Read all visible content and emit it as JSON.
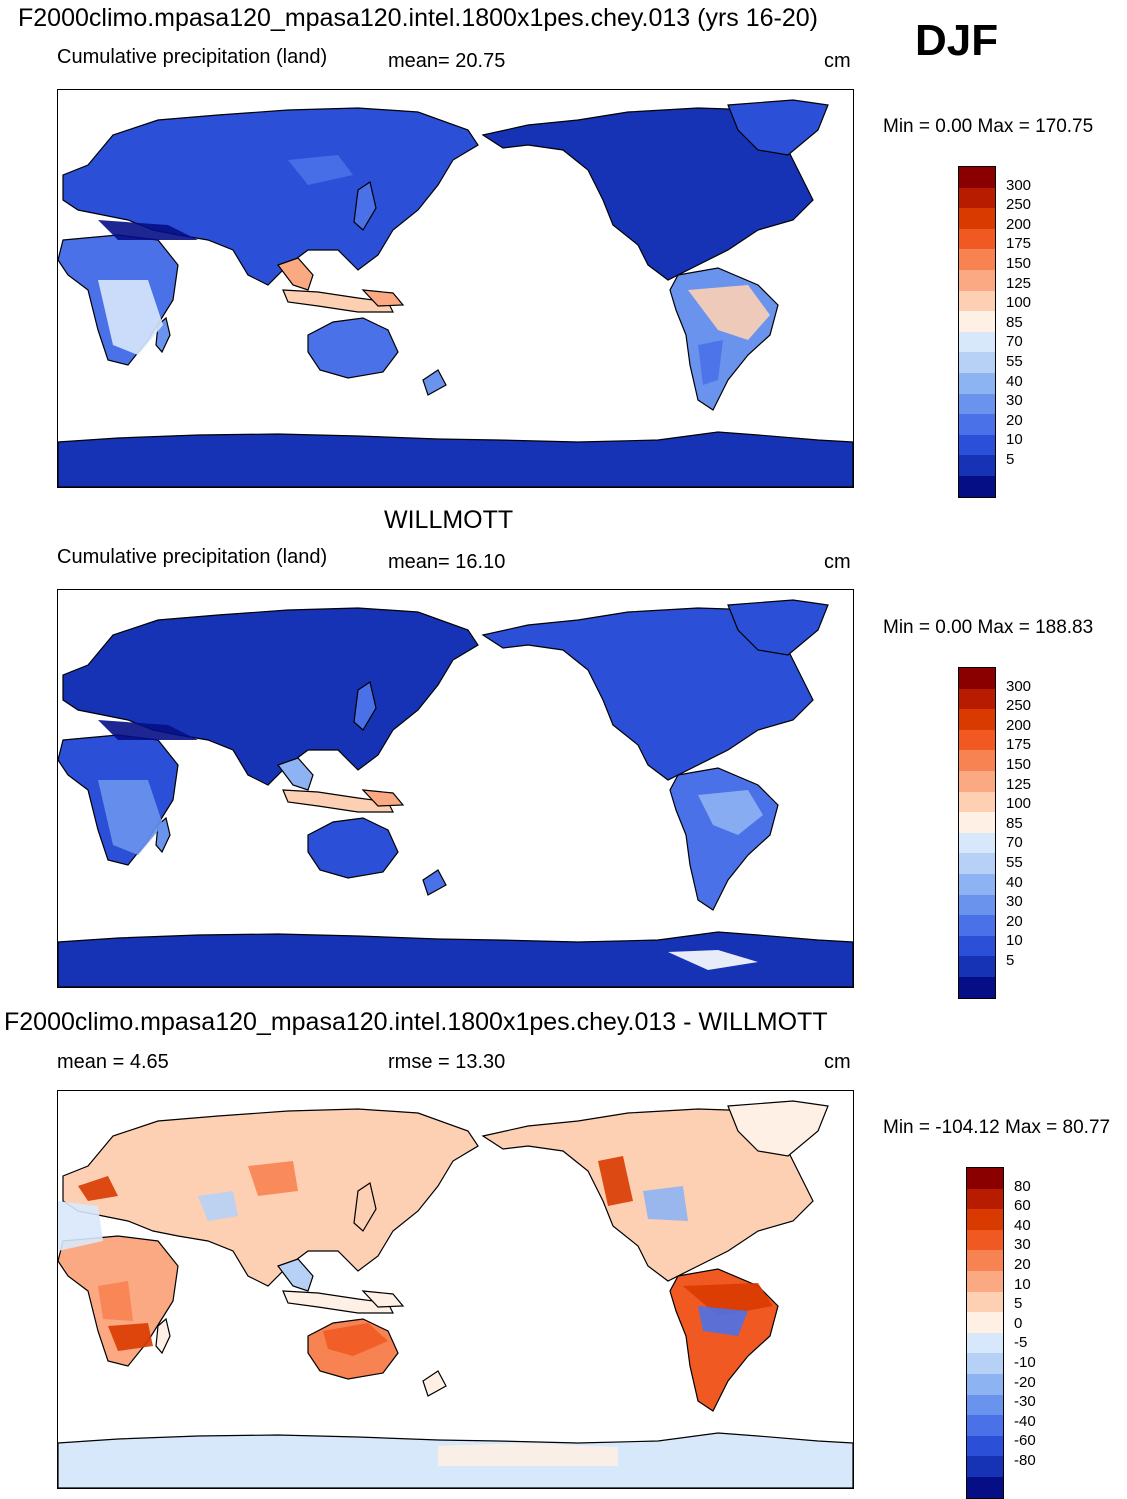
{
  "header": {
    "run_title": "F2000climo.mpasa120_mpasa120.intel.1800x1pes.chey.013 (yrs 16-20)",
    "season": "DJF"
  },
  "panels": [
    {
      "id": "model",
      "title": "",
      "left_label": "Cumulative precipitation (land)",
      "center_label": "mean=  20.75",
      "units": "cm",
      "minmax": "Min =    0.00 Max = 170.75",
      "palette": "precip"
    },
    {
      "id": "obs",
      "title": "WILLMOTT",
      "left_label": "Cumulative precipitation (land)",
      "center_label": "mean=  16.10",
      "units": "cm",
      "minmax": "Min =    0.00 Max = 188.83",
      "palette": "precip"
    },
    {
      "id": "diff",
      "title": "F2000climo.mpasa120_mpasa120.intel.1800x1pes.chey.013 - WILLMOTT",
      "left_label": "mean =    4.65",
      "center_label": "rmse =  13.30",
      "units": "cm",
      "minmax": "Min = -104.12 Max =  80.77",
      "palette": "diff"
    }
  ],
  "colorbars": {
    "precip": {
      "labels": [
        "300",
        "250",
        "200",
        "175",
        "150",
        "125",
        "100",
        "85",
        "70",
        "55",
        "40",
        "30",
        "20",
        "10",
        "5"
      ],
      "colors": [
        "#8a0000",
        "#b81c00",
        "#d93a00",
        "#f05a22",
        "#f78252",
        "#fba982",
        "#fdd0b4",
        "#fef0e4",
        "#d8e8fb",
        "#b6d0f6",
        "#8eb3f3",
        "#6a93ee",
        "#4a71e8",
        "#2b4fd6",
        "#1633b6",
        "#060e86"
      ]
    },
    "diff": {
      "labels": [
        "80",
        "60",
        "40",
        "30",
        "20",
        "10",
        "5",
        "0",
        "-5",
        "-10",
        "-20",
        "-30",
        "-40",
        "-60",
        "-80"
      ],
      "colors": [
        "#8a0000",
        "#b81c00",
        "#d93a00",
        "#f05a22",
        "#f78252",
        "#fba982",
        "#fdd0b4",
        "#fef0e4",
        "#d8e8fb",
        "#b6d0f6",
        "#8eb3f3",
        "#6a93ee",
        "#4a71e8",
        "#2b4fd6",
        "#1633b6",
        "#060e86"
      ]
    }
  },
  "chart_data": [
    {
      "type": "heatmap",
      "title": "F2000climo.mpasa120_mpasa120.intel.1800x1pes.chey.013 (yrs 16-20)",
      "variable": "Cumulative precipitation (land)",
      "season": "DJF",
      "units": "cm",
      "mean": 20.75,
      "min": 0.0,
      "max": 170.75,
      "contour_levels": [
        5,
        10,
        20,
        30,
        40,
        55,
        70,
        85,
        100,
        125,
        150,
        175,
        200,
        250,
        300
      ]
    },
    {
      "type": "heatmap",
      "title": "WILLMOTT",
      "variable": "Cumulative precipitation (land)",
      "units": "cm",
      "mean": 16.1,
      "min": 0.0,
      "max": 188.83,
      "contour_levels": [
        5,
        10,
        20,
        30,
        40,
        55,
        70,
        85,
        100,
        125,
        150,
        175,
        200,
        250,
        300
      ]
    },
    {
      "type": "heatmap",
      "title": "F2000climo.mpasa120_mpasa120.intel.1800x1pes.chey.013 - WILLMOTT",
      "units": "cm",
      "mean": 4.65,
      "rmse": 13.3,
      "min": -104.12,
      "max": 80.77,
      "contour_levels": [
        -80,
        -60,
        -40,
        -30,
        -20,
        -10,
        -5,
        0,
        5,
        10,
        20,
        30,
        40,
        60,
        80
      ]
    }
  ]
}
